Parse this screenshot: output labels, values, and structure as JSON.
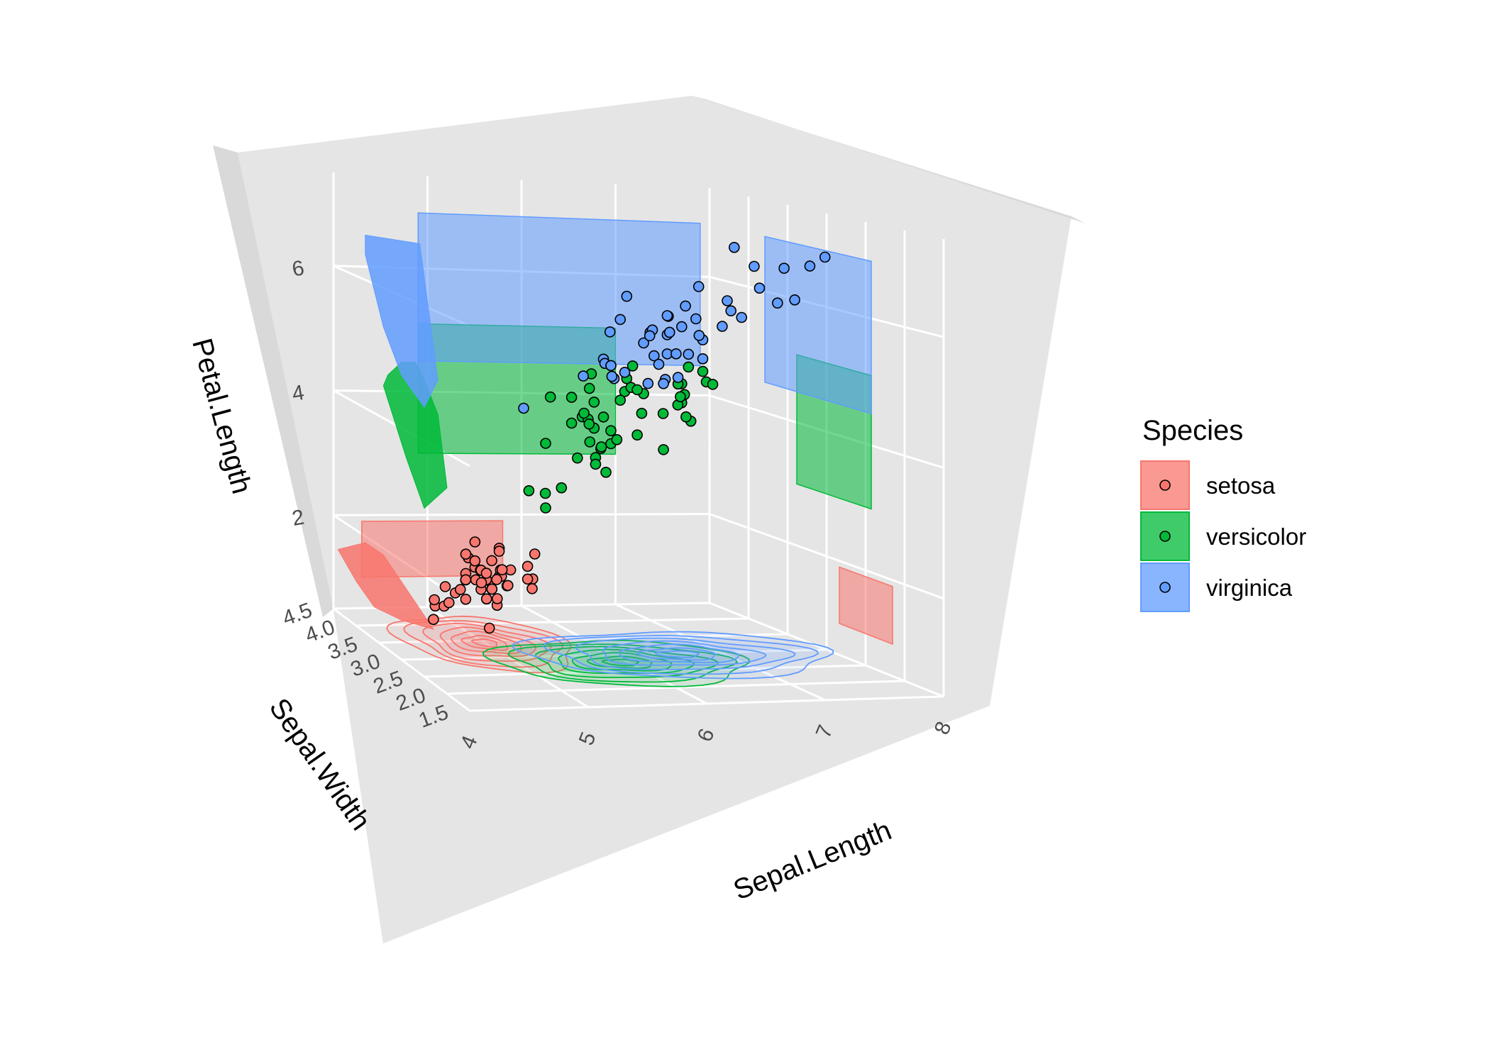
{
  "chart_data": {
    "type": "scatter",
    "title": "",
    "projection": "3d-perspective",
    "axes": {
      "x": {
        "label": "Sepal.Length",
        "range": [
          4,
          8
        ],
        "ticks": [
          "4",
          "5",
          "6",
          "7",
          "8"
        ]
      },
      "y": {
        "label": "Sepal.Width",
        "range": [
          1.5,
          4.5
        ],
        "ticks": [
          "1.5",
          "2.0",
          "2.5",
          "3.0",
          "3.5",
          "4.0",
          "4.5"
        ]
      },
      "z": {
        "label": "Petal.Length",
        "range": [
          0.5,
          7.5
        ],
        "ticks": [
          "2",
          "4",
          "6"
        ]
      }
    },
    "panel_background": "#e5e5e5",
    "grid": true,
    "legend": {
      "title": "Species",
      "position": "right",
      "entries": [
        "setosa",
        "versicolor",
        "virginica"
      ]
    },
    "colors": {
      "setosa": "#F8766D",
      "versicolor": "#00BA38",
      "virginica": "#619CFF"
    },
    "layers": [
      "points",
      "density-contours-floor",
      "hull-projection-sepal-width-wall",
      "range-bands-sepal-length-wall"
    ],
    "series": [
      {
        "name": "setosa",
        "points": [
          [
            5.1,
            3.5,
            1.4
          ],
          [
            4.9,
            3.0,
            1.4
          ],
          [
            4.7,
            3.2,
            1.3
          ],
          [
            4.6,
            3.1,
            1.5
          ],
          [
            5.0,
            3.6,
            1.4
          ],
          [
            5.4,
            3.9,
            1.7
          ],
          [
            4.6,
            3.4,
            1.4
          ],
          [
            5.0,
            3.4,
            1.5
          ],
          [
            4.4,
            2.9,
            1.4
          ],
          [
            4.9,
            3.1,
            1.5
          ],
          [
            5.4,
            3.7,
            1.5
          ],
          [
            4.8,
            3.4,
            1.6
          ],
          [
            4.8,
            3.0,
            1.4
          ],
          [
            4.3,
            3.0,
            1.1
          ],
          [
            5.8,
            4.0,
            1.2
          ],
          [
            5.7,
            4.4,
            1.5
          ],
          [
            5.4,
            3.9,
            1.3
          ],
          [
            5.1,
            3.5,
            1.4
          ],
          [
            5.7,
            3.8,
            1.7
          ],
          [
            5.1,
            3.8,
            1.5
          ],
          [
            5.4,
            3.4,
            1.7
          ],
          [
            5.1,
            3.7,
            1.5
          ],
          [
            4.6,
            3.6,
            1.0
          ],
          [
            5.1,
            3.3,
            1.7
          ],
          [
            4.8,
            3.4,
            1.9
          ],
          [
            5.0,
            3.0,
            1.6
          ],
          [
            5.0,
            3.4,
            1.6
          ],
          [
            5.2,
            3.5,
            1.5
          ],
          [
            5.2,
            3.4,
            1.4
          ],
          [
            4.7,
            3.2,
            1.6
          ],
          [
            4.8,
            3.1,
            1.6
          ],
          [
            5.4,
            3.4,
            1.5
          ],
          [
            5.2,
            4.1,
            1.5
          ],
          [
            5.5,
            4.2,
            1.4
          ],
          [
            4.9,
            3.1,
            1.5
          ],
          [
            5.0,
            3.2,
            1.2
          ],
          [
            5.5,
            3.5,
            1.3
          ],
          [
            4.9,
            3.6,
            1.4
          ],
          [
            4.4,
            3.0,
            1.3
          ],
          [
            5.1,
            3.4,
            1.5
          ],
          [
            5.0,
            3.5,
            1.3
          ],
          [
            4.5,
            2.3,
            1.3
          ],
          [
            4.4,
            3.2,
            1.3
          ],
          [
            5.0,
            3.5,
            1.6
          ],
          [
            5.1,
            3.8,
            1.9
          ],
          [
            4.8,
            3.0,
            1.4
          ],
          [
            5.1,
            3.8,
            1.6
          ],
          [
            4.6,
            3.2,
            1.4
          ],
          [
            5.3,
            3.7,
            1.5
          ],
          [
            5.0,
            3.3,
            1.4
          ]
        ]
      },
      {
        "name": "versicolor",
        "points": [
          [
            7.0,
            3.2,
            4.7
          ],
          [
            6.4,
            3.2,
            4.5
          ],
          [
            6.9,
            3.1,
            4.9
          ],
          [
            5.5,
            2.3,
            4.0
          ],
          [
            6.5,
            2.8,
            4.6
          ],
          [
            5.7,
            2.8,
            4.5
          ],
          [
            6.3,
            3.3,
            4.7
          ],
          [
            4.9,
            2.4,
            3.3
          ],
          [
            6.6,
            2.9,
            4.6
          ],
          [
            5.2,
            2.7,
            3.9
          ],
          [
            5.0,
            2.0,
            3.5
          ],
          [
            5.9,
            3.0,
            4.2
          ],
          [
            6.0,
            2.2,
            4.0
          ],
          [
            6.1,
            2.9,
            4.7
          ],
          [
            5.6,
            2.9,
            3.6
          ],
          [
            6.7,
            3.1,
            4.4
          ],
          [
            5.6,
            3.0,
            4.5
          ],
          [
            5.8,
            2.7,
            4.1
          ],
          [
            6.2,
            2.2,
            4.5
          ],
          [
            5.6,
            2.5,
            3.9
          ],
          [
            5.9,
            3.2,
            4.8
          ],
          [
            6.1,
            2.8,
            4.0
          ],
          [
            6.3,
            2.5,
            4.9
          ],
          [
            6.1,
            2.8,
            4.7
          ],
          [
            6.4,
            2.9,
            4.3
          ],
          [
            6.6,
            3.0,
            4.4
          ],
          [
            6.8,
            2.8,
            4.8
          ],
          [
            6.7,
            3.0,
            5.0
          ],
          [
            6.0,
            2.9,
            4.5
          ],
          [
            5.7,
            2.6,
            3.5
          ],
          [
            5.5,
            2.4,
            3.8
          ],
          [
            5.5,
            2.4,
            3.7
          ],
          [
            5.8,
            2.7,
            3.9
          ],
          [
            6.0,
            2.7,
            5.1
          ],
          [
            5.4,
            3.0,
            4.5
          ],
          [
            6.0,
            3.4,
            4.5
          ],
          [
            6.7,
            3.1,
            4.7
          ],
          [
            6.3,
            2.3,
            4.4
          ],
          [
            5.6,
            3.0,
            4.1
          ],
          [
            5.5,
            2.5,
            4.0
          ],
          [
            5.5,
            2.6,
            4.4
          ],
          [
            6.1,
            3.0,
            4.6
          ],
          [
            5.8,
            2.6,
            4.0
          ],
          [
            5.0,
            2.3,
            3.3
          ],
          [
            5.6,
            2.7,
            4.2
          ],
          [
            5.7,
            3.0,
            4.2
          ],
          [
            5.7,
            2.9,
            4.2
          ],
          [
            6.2,
            2.9,
            4.3
          ],
          [
            5.1,
            2.5,
            3.0
          ],
          [
            5.7,
            2.8,
            4.1
          ]
        ]
      },
      {
        "name": "virginica",
        "points": [
          [
            6.3,
            3.3,
            6.0
          ],
          [
            5.8,
            2.7,
            5.1
          ],
          [
            7.1,
            3.0,
            5.9
          ],
          [
            6.3,
            2.9,
            5.6
          ],
          [
            6.5,
            3.0,
            5.8
          ],
          [
            7.6,
            3.0,
            6.6
          ],
          [
            4.9,
            2.5,
            4.5
          ],
          [
            7.3,
            2.9,
            6.3
          ],
          [
            6.7,
            2.5,
            5.8
          ],
          [
            7.2,
            3.6,
            6.1
          ],
          [
            6.5,
            3.2,
            5.1
          ],
          [
            6.4,
            2.7,
            5.3
          ],
          [
            6.8,
            3.0,
            5.5
          ],
          [
            5.7,
            2.5,
            5.0
          ],
          [
            5.8,
            2.8,
            5.1
          ],
          [
            6.4,
            3.2,
            5.3
          ],
          [
            6.5,
            3.0,
            5.5
          ],
          [
            7.7,
            3.8,
            6.7
          ],
          [
            7.7,
            2.6,
            6.9
          ],
          [
            6.0,
            2.2,
            5.0
          ],
          [
            6.9,
            3.2,
            5.7
          ],
          [
            5.6,
            2.8,
            4.9
          ],
          [
            7.7,
            2.8,
            6.7
          ],
          [
            6.3,
            2.7,
            4.9
          ],
          [
            6.7,
            3.3,
            5.7
          ],
          [
            7.2,
            3.2,
            6.0
          ],
          [
            6.2,
            2.8,
            4.8
          ],
          [
            6.1,
            3.0,
            4.9
          ],
          [
            6.4,
            2.8,
            5.6
          ],
          [
            7.2,
            3.0,
            5.8
          ],
          [
            7.4,
            2.8,
            6.1
          ],
          [
            7.9,
            3.8,
            6.4
          ],
          [
            6.4,
            2.8,
            5.6
          ],
          [
            6.3,
            2.8,
            5.1
          ],
          [
            6.1,
            2.6,
            5.6
          ],
          [
            7.7,
            3.0,
            6.1
          ],
          [
            6.3,
            3.4,
            5.6
          ],
          [
            6.4,
            3.1,
            5.5
          ],
          [
            6.0,
            3.0,
            4.8
          ],
          [
            6.9,
            3.1,
            5.4
          ],
          [
            6.7,
            3.1,
            5.6
          ],
          [
            6.9,
            3.1,
            5.1
          ],
          [
            5.8,
            2.7,
            5.1
          ],
          [
            6.8,
            3.2,
            5.9
          ],
          [
            6.7,
            3.3,
            5.7
          ],
          [
            6.7,
            3.0,
            5.2
          ],
          [
            6.3,
            2.5,
            5.0
          ],
          [
            6.5,
            3.0,
            5.2
          ],
          [
            6.2,
            3.4,
            5.4
          ],
          [
            5.9,
            3.0,
            5.1
          ]
        ]
      }
    ],
    "range_bands": [
      {
        "name": "setosa",
        "sepal_length": [
          4.3,
          5.8
        ],
        "petal_length": [
          1.0,
          1.9
        ]
      },
      {
        "name": "versicolor",
        "sepal_length": [
          4.9,
          7.0
        ],
        "petal_length": [
          3.0,
          5.1
        ]
      },
      {
        "name": "virginica",
        "sepal_length": [
          4.9,
          7.9
        ],
        "petal_length": [
          4.5,
          6.9
        ]
      }
    ]
  }
}
